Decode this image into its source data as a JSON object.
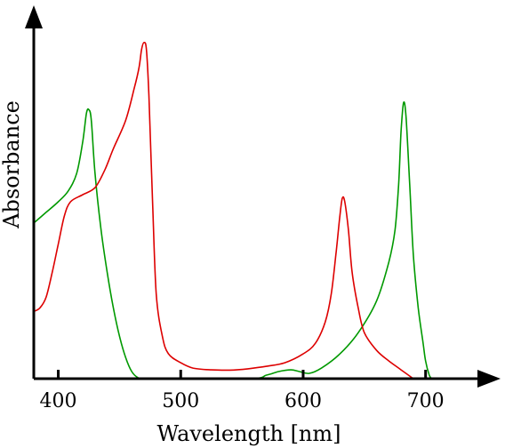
{
  "chart_data": {
    "type": "line",
    "title": "",
    "xlabel": "Wavelength [nm]",
    "ylabel": "Absorbance",
    "xlim": [
      380,
      730
    ],
    "ylim": [
      0,
      1.0
    ],
    "x_ticks": [
      400,
      500,
      600,
      700
    ],
    "grid": false,
    "legend": "none",
    "series": [
      {
        "color": "#009900",
        "points": [
          [
            380,
            0.44
          ],
          [
            390,
            0.47
          ],
          [
            400,
            0.5
          ],
          [
            408,
            0.53
          ],
          [
            415,
            0.58
          ],
          [
            420,
            0.67
          ],
          [
            423,
            0.75
          ],
          [
            425,
            0.76
          ],
          [
            427,
            0.73
          ],
          [
            430,
            0.58
          ],
          [
            435,
            0.42
          ],
          [
            440,
            0.3
          ],
          [
            445,
            0.2
          ],
          [
            450,
            0.12
          ],
          [
            455,
            0.06
          ],
          [
            460,
            0.02
          ],
          [
            465,
            0.003
          ],
          [
            470,
            0.0
          ],
          [
            555,
            0.0
          ],
          [
            570,
            0.01
          ],
          [
            580,
            0.02
          ],
          [
            590,
            0.025
          ],
          [
            597,
            0.02
          ],
          [
            605,
            0.015
          ],
          [
            615,
            0.03
          ],
          [
            630,
            0.07
          ],
          [
            645,
            0.13
          ],
          [
            660,
            0.22
          ],
          [
            670,
            0.33
          ],
          [
            675,
            0.42
          ],
          [
            678,
            0.55
          ],
          [
            680,
            0.7
          ],
          [
            682,
            0.78
          ],
          [
            684,
            0.74
          ],
          [
            687,
            0.55
          ],
          [
            690,
            0.35
          ],
          [
            694,
            0.2
          ],
          [
            698,
            0.1
          ],
          [
            700,
            0.05
          ],
          [
            703,
            0.01
          ],
          [
            705,
            0.0
          ]
        ]
      },
      {
        "color": "#dd0000",
        "points": [
          [
            380,
            0.19
          ],
          [
            385,
            0.2
          ],
          [
            390,
            0.23
          ],
          [
            395,
            0.3
          ],
          [
            400,
            0.38
          ],
          [
            405,
            0.46
          ],
          [
            410,
            0.5
          ],
          [
            420,
            0.52
          ],
          [
            430,
            0.54
          ],
          [
            438,
            0.59
          ],
          [
            445,
            0.65
          ],
          [
            455,
            0.73
          ],
          [
            462,
            0.82
          ],
          [
            466,
            0.88
          ],
          [
            468,
            0.93
          ],
          [
            470,
            0.95
          ],
          [
            472,
            0.93
          ],
          [
            474,
            0.8
          ],
          [
            477,
            0.5
          ],
          [
            480,
            0.24
          ],
          [
            485,
            0.12
          ],
          [
            490,
            0.07
          ],
          [
            500,
            0.045
          ],
          [
            510,
            0.03
          ],
          [
            525,
            0.025
          ],
          [
            540,
            0.024
          ],
          [
            555,
            0.028
          ],
          [
            570,
            0.035
          ],
          [
            585,
            0.045
          ],
          [
            600,
            0.07
          ],
          [
            610,
            0.1
          ],
          [
            618,
            0.16
          ],
          [
            623,
            0.24
          ],
          [
            627,
            0.36
          ],
          [
            630,
            0.46
          ],
          [
            632,
            0.51
          ],
          [
            634,
            0.5
          ],
          [
            637,
            0.42
          ],
          [
            640,
            0.3
          ],
          [
            645,
            0.2
          ],
          [
            650,
            0.13
          ],
          [
            660,
            0.08
          ],
          [
            670,
            0.05
          ],
          [
            680,
            0.025
          ],
          [
            690,
            0.0
          ]
        ]
      }
    ]
  }
}
